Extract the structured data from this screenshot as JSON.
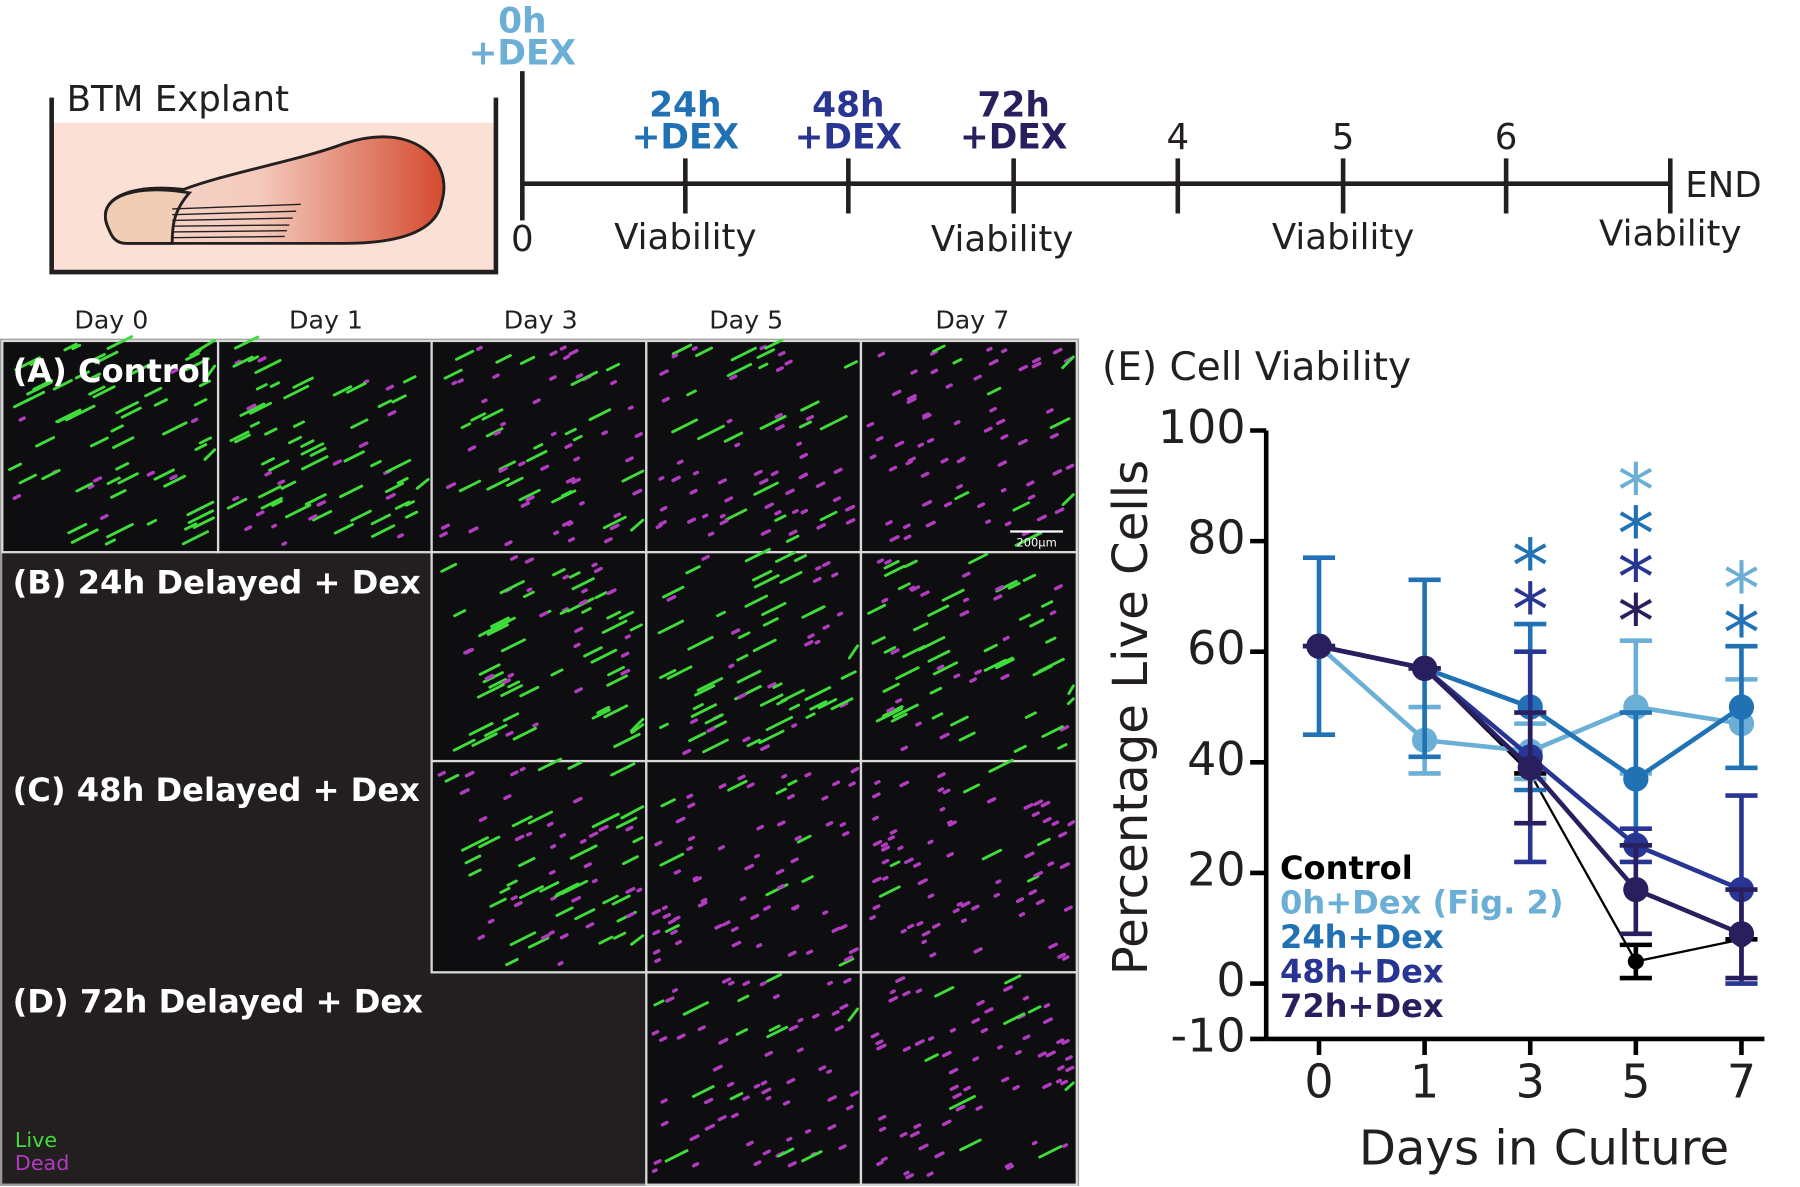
{
  "timeline": {
    "title": "BTM Explant",
    "above": [
      [
        "0h",
        "+DEX"
      ],
      [
        "24h",
        "+DEX"
      ],
      [
        "48h",
        "+DEX"
      ],
      [
        "72h",
        "+DEX"
      ],
      [
        "4"
      ],
      [
        "5"
      ],
      [
        "6"
      ]
    ],
    "start": "0",
    "viability": [
      "Viability",
      "Viability",
      "Viability",
      "Viability"
    ],
    "end": "END"
  },
  "images": {
    "columns": [
      "Day 0",
      "Day 1",
      "Day 3",
      "Day 5",
      "Day 7"
    ],
    "rows": [
      "(A) Control",
      "(B) 24h Delayed + Dex",
      "(C) 48h Delayed + Dex",
      "(D) 72h Delayed + Dex"
    ],
    "scale_bar": "200µm",
    "legend": [
      "Live",
      "Dead"
    ]
  },
  "chart_data": {
    "type": "line",
    "title": "(E) Cell Viability",
    "x_label": "Days in Culture",
    "y_label": "Percentage Live  Cells",
    "categories": [
      "0",
      "1",
      "3",
      "5",
      "7"
    ],
    "ylim": [
      -10,
      100
    ],
    "yticks": [
      -10,
      0,
      20,
      40,
      60,
      80,
      100
    ],
    "series": [
      {
        "name": "Control",
        "color": "#000000",
        "values": [
          61,
          57,
          38,
          4,
          8
        ],
        "errors": [
          0,
          0,
          0,
          3,
          0
        ]
      },
      {
        "name": "0h+Dex (Fig. 2)",
        "color": "#6baed6",
        "values": [
          61,
          44,
          42,
          50,
          47
        ],
        "errors": [
          0,
          6,
          5,
          12,
          8
        ]
      },
      {
        "name": "24h+Dex",
        "color": "#2171b5",
        "values": [
          61,
          57,
          50,
          37,
          50
        ],
        "errors": [
          16,
          16,
          15,
          12,
          11
        ]
      },
      {
        "name": "48h+Dex",
        "color": "#283593",
        "values": [
          61,
          57,
          41,
          25,
          17
        ],
        "errors": [
          0,
          0,
          19,
          3,
          17
        ]
      },
      {
        "name": "72h+Dex",
        "color": "#2a1f5e",
        "values": [
          61,
          57,
          39,
          17,
          9
        ],
        "errors": [
          0,
          0,
          10,
          8,
          8
        ]
      }
    ],
    "annotations": [
      {
        "text": "*",
        "category": "3",
        "color": "#283593"
      },
      {
        "text": "*",
        "category": "3",
        "color": "#2171b5"
      },
      {
        "text": "*",
        "category": "5",
        "color": "#2a1f5e"
      },
      {
        "text": "*",
        "category": "5",
        "color": "#283593"
      },
      {
        "text": "*",
        "category": "5",
        "color": "#2171b5"
      },
      {
        "text": "*",
        "category": "5",
        "color": "#6baed6"
      },
      {
        "text": "*",
        "category": "7",
        "color": "#2171b5"
      },
      {
        "text": "*",
        "category": "7",
        "color": "#6baed6"
      }
    ]
  }
}
